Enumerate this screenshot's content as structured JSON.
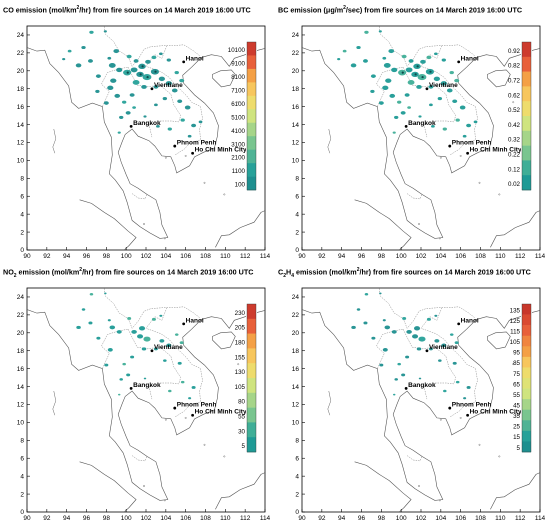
{
  "x_ticks": [
    "90",
    "92",
    "94",
    "96",
    "98",
    "100",
    "102",
    "104",
    "106",
    "108",
    "110",
    "112",
    "114"
  ],
  "y_ticks": [
    "24",
    "22",
    "20",
    "18",
    "16",
    "14",
    "12",
    "10",
    "8",
    "6",
    "4",
    "2",
    "0"
  ],
  "cities": [
    {
      "name": "Hanoi",
      "lon": 105.8,
      "lat": 21.0
    },
    {
      "name": "Vientiane",
      "lon": 102.6,
      "lat": 18.0
    },
    {
      "name": "Bangkok",
      "lon": 100.5,
      "lat": 13.8
    },
    {
      "name": "Phnom Penh",
      "lon": 104.9,
      "lat": 11.6
    },
    {
      "name": "Ho Chi Minh City",
      "lon": 106.7,
      "lat": 10.8
    }
  ],
  "panels": [
    {
      "title_a": "CO emission (mol/km",
      "title_sup": "2",
      "title_b": "/hr) from fire sources on 14 March 2019 16:00 UTC",
      "legend": [
        "10100",
        "9100",
        "8100",
        "7100",
        "6100",
        "5100",
        "4100",
        "3100",
        "2100",
        "1100",
        "100"
      ],
      "colors": [
        "#cd3b2d",
        "#e8603a",
        "#f4a046",
        "#f7c65d",
        "#eedc6c",
        "#cfe47f",
        "#a6d589",
        "#79c58f",
        "#4fb395",
        "#27a199",
        "#1e8f8f"
      ],
      "density": "high"
    },
    {
      "title_a": "BC emission (μg/m",
      "title_sup": "2",
      "title_b": "/sec) from fire sources on 14 March 2019 16:00 UTC",
      "legend": [
        "0.92",
        "0.82",
        "0.72",
        "0.62",
        "0.52",
        "0.42",
        "0.32",
        "0.22",
        "0.12",
        "0.02"
      ],
      "colors": [
        "#cd3b2d",
        "#e8603a",
        "#f4a046",
        "#f7c65d",
        "#eedc6c",
        "#cfe47f",
        "#a6d589",
        "#79c58f",
        "#3fae97",
        "#1e9a95"
      ],
      "density": "high"
    },
    {
      "title_a": "NO",
      "title_sub": "2",
      "title_a2": " emission (mol/km",
      "title_sup": "2",
      "title_b": "/hr) from fire sources on 14 March 2019 16:00 UTC",
      "legend": [
        "230",
        "205",
        "180",
        "155",
        "130",
        "105",
        "80",
        "55",
        "30",
        "5"
      ],
      "colors": [
        "#cd3b2d",
        "#e8603a",
        "#f4a046",
        "#f7c65d",
        "#eedc6c",
        "#cfe47f",
        "#a6d589",
        "#79c58f",
        "#3fae97",
        "#1e9a95"
      ],
      "density": "low"
    },
    {
      "title_a": "C",
      "title_sub": "2",
      "title_a2": "H",
      "title_sub2": "4",
      "title_a3": " emission (mol/km",
      "title_sup": "2",
      "title_b": "/hr) from fire sources on 14 March 2019 16:00 UTC",
      "legend": [
        "135",
        "125",
        "115",
        "105",
        "95",
        "85",
        "75",
        "65",
        "55",
        "45",
        "35",
        "25",
        "15",
        "5"
      ],
      "colors": [
        "#c8372b",
        "#da4a31",
        "#e8603a",
        "#f08540",
        "#f4a046",
        "#f7c65d",
        "#eedc6c",
        "#dfe275",
        "#cfe47f",
        "#a6d589",
        "#79c58f",
        "#4fb395",
        "#27a199",
        "#1e8f8f"
      ],
      "density": "low"
    }
  ]
}
